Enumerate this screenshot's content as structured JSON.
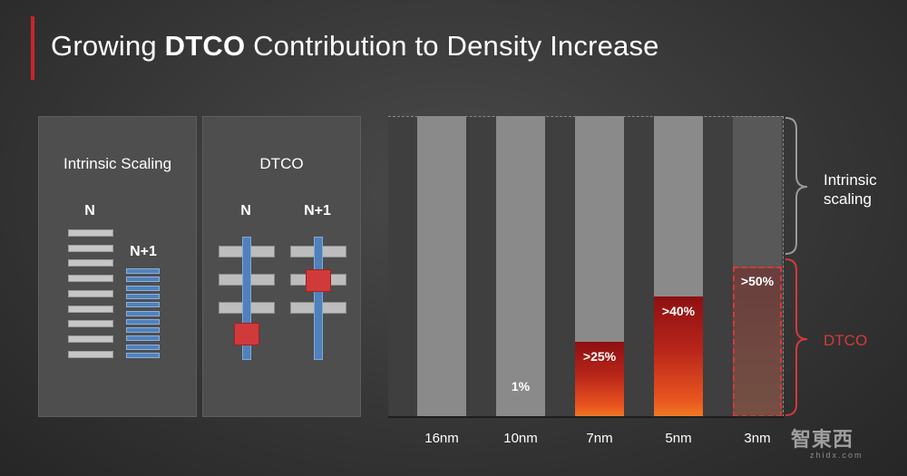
{
  "slide": {
    "title_pre": "Growing ",
    "title_bold": "DTCO",
    "title_post": " Contribution to Density Increase",
    "accent_color": "#c8262c"
  },
  "left_panel": {
    "label": "Intrinsic Scaling",
    "node_n": "N",
    "node_n1": "N+1"
  },
  "mid_panel": {
    "label": "DTCO",
    "node_n": "N",
    "node_n1": "N+1"
  },
  "chart_data": {
    "type": "bar",
    "title": "",
    "categories": [
      "16nm",
      "10nm",
      "7nm",
      "5nm",
      "3nm"
    ],
    "ylim": [
      0,
      100
    ],
    "ylabel": "",
    "xlabel": "",
    "series": [
      {
        "name": "DTCO",
        "values": [
          0,
          1,
          25,
          40,
          50
        ],
        "labels": [
          "",
          "1%",
          ">25%",
          ">40%",
          ">50%"
        ],
        "color": "#c8262c"
      },
      {
        "name": "Intrinsic scaling",
        "values": [
          100,
          99,
          75,
          60,
          50
        ],
        "color": "#8a8a8a"
      }
    ],
    "projected_categories": [
      "3nm"
    ],
    "brace_labels": {
      "intrinsic": "Intrinsic\nscaling",
      "dtco": "DTCO"
    }
  },
  "braces": {
    "intrinsic_line1": "Intrinsic",
    "intrinsic_line2": "scaling",
    "dtco": "DTCO",
    "dtco_color": "#d43a3a"
  },
  "watermark": {
    "logo": "智東西",
    "sub": "zhidx.com"
  }
}
